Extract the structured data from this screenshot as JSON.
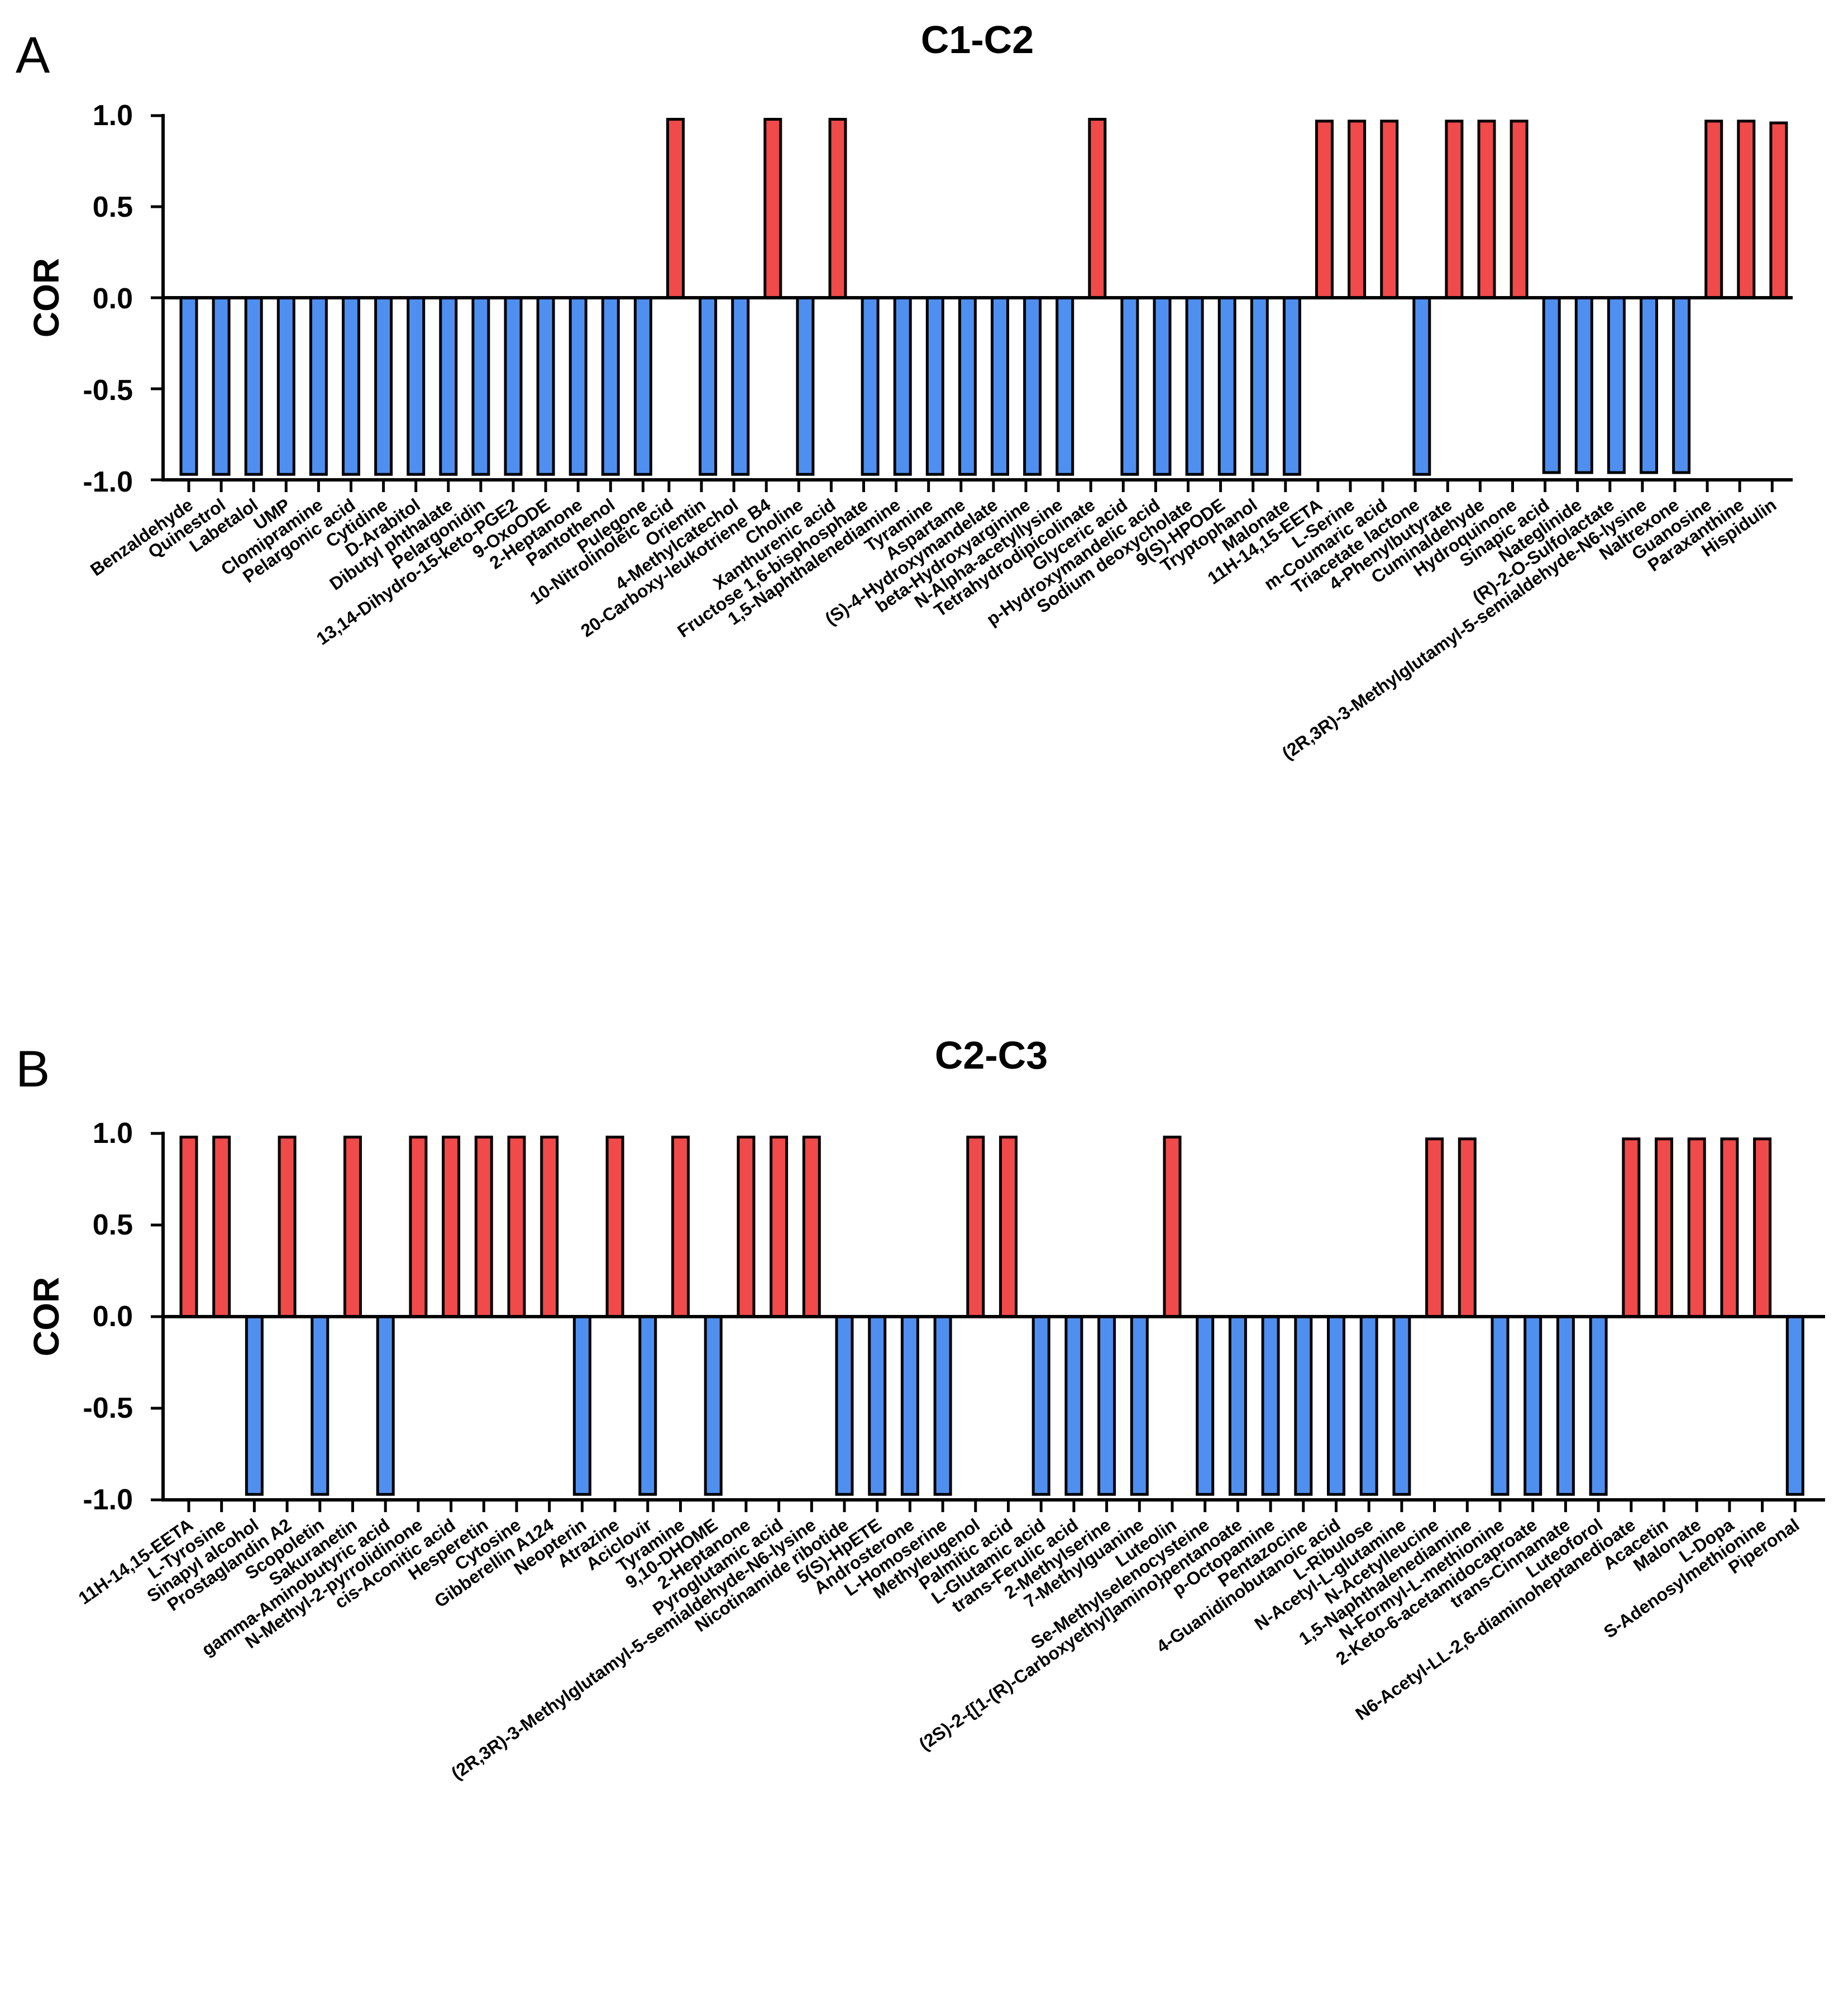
{
  "panels": [
    {
      "letter": "A"
    },
    {
      "letter": "B"
    }
  ],
  "colors": {
    "positive": "#f04a4a",
    "negative": "#4f8ff0",
    "stroke": "#000000"
  },
  "chart_data": [
    {
      "type": "bar",
      "title": "C1-C2",
      "xlabel": "",
      "ylabel": "COR",
      "ylim": [
        -1.0,
        1.0
      ],
      "yticks": [
        "1.0",
        "0.5",
        "0.0",
        "-0.5",
        "-1.0"
      ],
      "ytick_values": [
        1.0,
        0.5,
        0.0,
        -0.5,
        -1.0
      ],
      "grid": false,
      "categories": [
        "Benzaldehyde",
        "Quinestrol",
        "Labetalol",
        "UMP",
        "Clomipramine",
        "Pelargonic acid",
        "Cytidine",
        "D-Arabitol",
        "Dibutyl phthalate",
        "Pelargonidin",
        "13,14-Dihydro-15-keto-PGE2",
        "9-OxoODE",
        "2-Heptanone",
        "Pantothenol",
        "Pulegone",
        "10-Nitrolinoleic acid",
        "Orientin",
        "4-Methylcatechol",
        "20-Carboxy-leukotriene B4",
        "Choline",
        "Xanthurenic acid",
        "Fructose 1,6-bisphosphate",
        "1,5-Naphthalenediamine",
        "Tyramine",
        "Aspartame",
        "(S)-4-Hydroxymandelate",
        "beta-Hydroxyarginine",
        "N-Alpha-acetyllysine",
        "Tetrahydrodipicolinate",
        "Glyceric acid",
        "p-Hydroxymandelic acid",
        "Sodium deoxycholate",
        "9(S)-HPODE",
        "Tryptophanol",
        "Malonate",
        "11H-14,15-EETA",
        "L-Serine",
        "m-Coumaric acid",
        "Triacetate lactone",
        "4-Phenylbutyrate",
        "Cuminaldehyde",
        "Hydroquinone",
        "Sinapic acid",
        "Nateglinide",
        "(R)-2-O-Sulfolactate",
        "(2R,3R)-3-Methylglutamyl-5-semialdehyde-N6-lysine",
        "Naltrexone",
        "Guanosine",
        "Paraxanthine",
        "Hispidulin"
      ],
      "values": [
        -0.97,
        -0.97,
        -0.97,
        -0.97,
        -0.97,
        -0.97,
        -0.97,
        -0.97,
        -0.97,
        -0.97,
        -0.97,
        -0.97,
        -0.97,
        -0.97,
        -0.97,
        0.98,
        -0.97,
        -0.97,
        0.98,
        -0.97,
        0.98,
        -0.97,
        -0.97,
        -0.97,
        -0.97,
        -0.97,
        -0.97,
        -0.97,
        0.98,
        -0.97,
        -0.97,
        -0.97,
        -0.97,
        -0.97,
        -0.97,
        0.97,
        0.97,
        0.97,
        -0.97,
        0.97,
        0.97,
        0.97,
        -0.96,
        -0.96,
        -0.96,
        -0.96,
        -0.96,
        0.97,
        0.97,
        0.96
      ],
      "bar_x": [
        0,
        1,
        2,
        3,
        4,
        5,
        6,
        7,
        8,
        9,
        10,
        11,
        12,
        13,
        14,
        15,
        16,
        17,
        18,
        19,
        20,
        21,
        22,
        23,
        24,
        25,
        26,
        27,
        28,
        29,
        30,
        31,
        32,
        33,
        34,
        35,
        36,
        37,
        38,
        39,
        40,
        41,
        42,
        43,
        44,
        45,
        46,
        47,
        48,
        49
      ],
      "tick_x": [
        0,
        1,
        2,
        3,
        4,
        5,
        6,
        7,
        8,
        9,
        10,
        11,
        12,
        13,
        14,
        14.8,
        15.8,
        16.8,
        17.8,
        18.8,
        19.8,
        20.8,
        21.8,
        22.8,
        23.8,
        24.8,
        25.8,
        26.8,
        27.8,
        28.8,
        29.8,
        30.8,
        31.8,
        32.8,
        33.8,
        34.8,
        35.8,
        36.8,
        37.8,
        38.8,
        39.8,
        40.8,
        41.8,
        42.8,
        43.8,
        44.8,
        45.8,
        46.8,
        47.8,
        48.8
      ]
    },
    {
      "type": "bar",
      "title": "C2-C3",
      "xlabel": "",
      "ylabel": "COR",
      "ylim": [
        -1.0,
        1.0
      ],
      "yticks": [
        "1.0",
        "0.5",
        "0.0",
        "-0.5",
        "-1.0"
      ],
      "ytick_values": [
        1.0,
        0.5,
        0.0,
        -0.5,
        -1.0
      ],
      "grid": false,
      "categories": [
        "11H-14,15-EETA",
        "L-Tyrosine",
        "Sinapyl alcohol",
        "Prostaglandin A2",
        "Scopoletin",
        "Sakuranetin",
        "gamma-Aminobutyric acid",
        "N-Methyl-2-pyrrolidinone",
        "cis-Aconitic acid",
        "Hesperetin",
        "Cytosine",
        "Gibberellin A124",
        "Neopterin",
        "Atrazine",
        "Aciclovir",
        "Tyramine",
        "9,10-DHOME",
        "2-Heptanone",
        "Pyroglutamic acid",
        "(2R,3R)-3-Methylglutamyl-5-semialdehyde-N6-lysine",
        "Nicotinamide ribotide",
        "5(S)-HpETE",
        "Androsterone",
        "L-Homoserine",
        "Methyleugenol",
        "Palmitic acid",
        "L-Glutamic acid",
        "trans-Ferulic acid",
        "2-Methylserine",
        "7-Methylguanine",
        "Luteolin",
        "Se-Methylselenocysteine",
        "(2S)-2-{[1-(R)-Carboxyethyl]amino}pentanoate",
        "p-Octopamine",
        "Pentazocine",
        "4-Guanidinobutanoic acid",
        "L-Ribulose",
        "N-Acetyl-L-glutamine",
        "N-Acetylleucine",
        "1,5-Naphthalenediamine",
        "N-Formyl-L-methionine",
        "2-Keto-6-acetamidocaproate",
        "trans-Cinnamate",
        "Luteoforol",
        "N6-Acetyl-LL-2,6-diaminoheptanedioate",
        "Acacetin",
        "Malonate",
        "L-Dopa",
        "S-Adenosylmethionine",
        "Piperonal"
      ],
      "values": [
        0.98,
        0.98,
        -0.97,
        0.98,
        -0.97,
        0.98,
        -0.97,
        0.98,
        0.98,
        0.98,
        0.98,
        0.98,
        -0.97,
        0.98,
        -0.97,
        0.98,
        -0.97,
        0.98,
        0.98,
        0.98,
        -0.97,
        -0.97,
        -0.97,
        -0.97,
        0.98,
        0.98,
        -0.97,
        -0.97,
        -0.97,
        -0.97,
        0.98,
        -0.97,
        -0.97,
        -0.97,
        -0.97,
        -0.97,
        -0.97,
        -0.97,
        0.97,
        0.97,
        -0.97,
        -0.97,
        -0.97,
        -0.97,
        0.97,
        0.97,
        0.97,
        0.97,
        0.97,
        -0.97
      ],
      "bar_x": [
        0,
        1,
        2,
        3,
        4,
        5,
        6,
        7,
        8,
        9,
        10,
        11,
        12,
        13,
        14,
        15,
        16,
        17,
        18,
        19,
        20,
        21,
        22,
        23,
        24,
        25,
        26,
        27,
        28,
        29,
        30,
        31,
        32,
        33,
        34,
        35,
        36,
        37,
        38,
        39,
        40,
        41,
        42,
        43,
        44,
        45,
        46,
        47,
        48,
        49
      ],
      "tick_x": [
        0,
        1,
        2,
        3,
        4,
        5,
        6,
        7,
        8,
        9,
        10,
        11,
        12,
        13,
        14,
        15,
        16,
        17,
        18,
        19,
        20,
        21,
        22,
        23,
        24,
        25,
        26,
        27,
        28,
        29,
        30,
        31,
        32,
        33,
        34,
        35,
        36,
        37,
        38,
        39,
        40,
        41,
        42,
        43,
        44,
        45,
        46,
        47,
        48,
        49
      ]
    }
  ]
}
